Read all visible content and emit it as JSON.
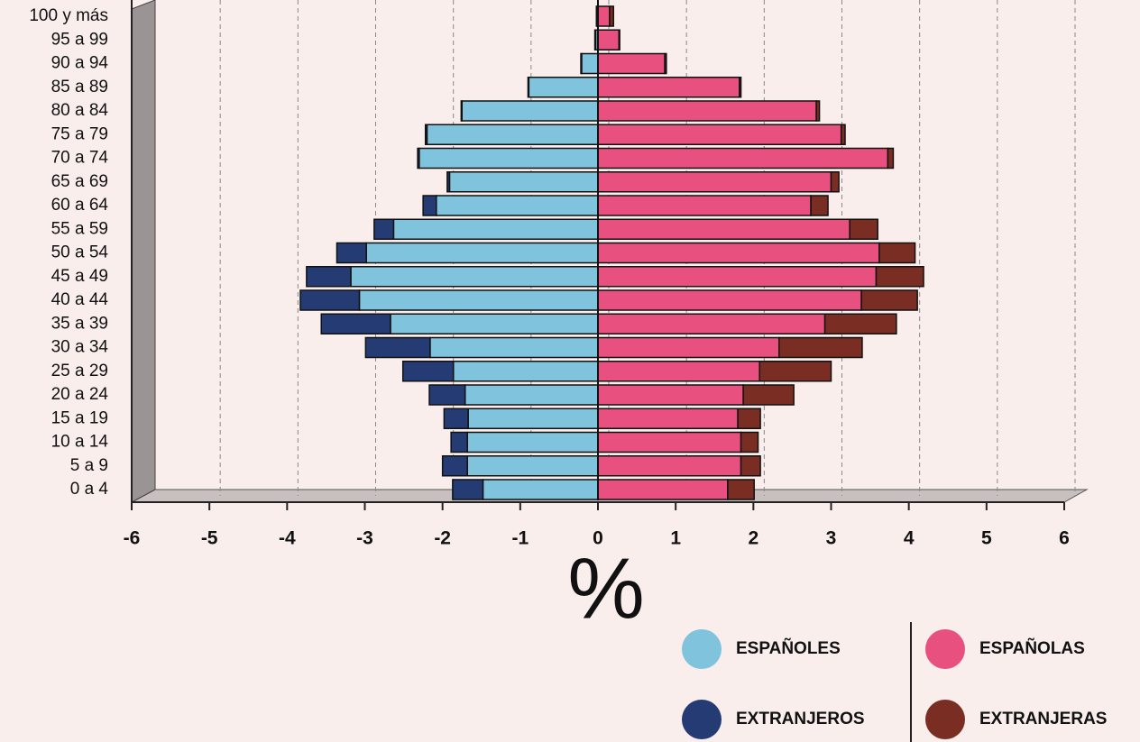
{
  "chart_data": {
    "type": "bar",
    "orientation": "horizontal",
    "stacked": true,
    "categories": [
      "0 a 4",
      "5 a 9",
      "10 a 14",
      "15 a 19",
      "20 a 24",
      "25 a 29",
      "30 a 34",
      "35 a 39",
      "40 a 44",
      "45 a 49",
      "50 a 54",
      "55 a 59",
      "60 a 64",
      "65 a 69",
      "70 a 74",
      "75 a 79",
      "80 a 84",
      "85 a 89",
      "90 a 94",
      "95 a 99",
      "100 y más"
    ],
    "series": [
      {
        "name": "ESPAÑOLES",
        "color": "#7fc3dd",
        "values": [
          -1.48,
          -1.68,
          -1.68,
          -1.67,
          -1.71,
          -1.86,
          -2.16,
          -2.67,
          -3.07,
          -3.18,
          -2.98,
          -2.63,
          -2.08,
          -1.91,
          -2.3,
          -2.2,
          -1.75,
          -0.89,
          -0.21,
          -0.03,
          -0.01
        ]
      },
      {
        "name": "EXTRANJEROS",
        "color": "#243c73",
        "values": [
          -0.39,
          -0.32,
          -0.21,
          -0.31,
          -0.46,
          -0.65,
          -0.83,
          -0.89,
          -0.76,
          -0.57,
          -0.38,
          -0.25,
          -0.17,
          -0.03,
          -0.02,
          -0.02,
          -0.01,
          -0.01,
          -0.01,
          -0.01,
          -0.01
        ]
      },
      {
        "name": "ESPAÑOLAS",
        "color": "#e8507f",
        "values": [
          1.67,
          1.84,
          1.84,
          1.8,
          1.87,
          2.08,
          2.33,
          2.92,
          3.39,
          3.58,
          3.62,
          3.24,
          2.74,
          3.0,
          3.73,
          3.13,
          2.81,
          1.82,
          0.86,
          0.27,
          0.15
        ]
      },
      {
        "name": "EXTRANJERAS",
        "color": "#7a2d22",
        "values": [
          0.34,
          0.25,
          0.22,
          0.29,
          0.65,
          0.92,
          1.07,
          0.92,
          0.72,
          0.61,
          0.46,
          0.36,
          0.22,
          0.1,
          0.07,
          0.05,
          0.04,
          0.02,
          0.02,
          0.01,
          0.05
        ]
      }
    ],
    "x_label": "%",
    "xlim": [
      -6,
      6
    ],
    "xticks": [
      -6,
      -5,
      -4,
      -3,
      -2,
      -1,
      0,
      1,
      2,
      3,
      4,
      5,
      6
    ],
    "grid": true
  }
}
